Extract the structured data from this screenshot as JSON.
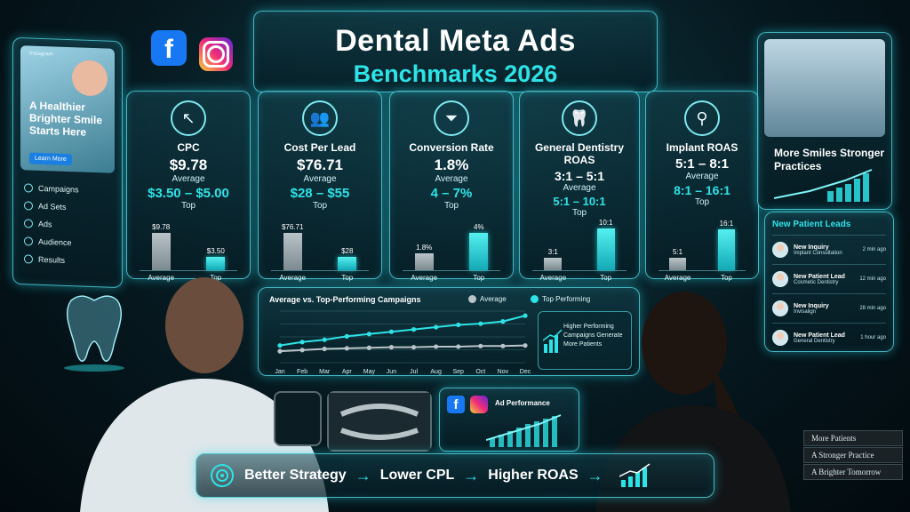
{
  "title": {
    "line1": "Dental Meta Ads",
    "line2": "Benchmarks 2026"
  },
  "brand_colors": {
    "accent": "#2de3e6",
    "facebook": "#1877f2",
    "background": "#06181f"
  },
  "icons": {
    "facebook": "facebook-logo",
    "instagram": "instagram-logo"
  },
  "metrics": [
    {
      "icon": "cursor-icon",
      "glyph": "↖",
      "label": "CPC",
      "average": "$9.78",
      "average_sub": "Average",
      "top": "$3.50 – $5.00",
      "top_sub": "Top",
      "bar_avg_label": "$9.78",
      "bar_top_label": "$3.50",
      "bar_avg_value": 9.78,
      "bar_top_value": 3.5,
      "bar_max": 12,
      "axis_avg": "Average",
      "axis_top": "Top"
    },
    {
      "icon": "people-icon",
      "glyph": "👥",
      "label": "Cost Per Lead",
      "average": "$76.71",
      "average_sub": "Average",
      "top": "$28 – $55",
      "top_sub": "Top",
      "bar_avg_label": "$76.71",
      "bar_top_label": "$28",
      "bar_avg_value": 76.71,
      "bar_top_value": 28,
      "bar_max": 95,
      "axis_avg": "Average",
      "axis_top": "Top"
    },
    {
      "icon": "funnel-icon",
      "glyph": "⏷",
      "label": "Conversion Rate",
      "average": "1.8%",
      "average_sub": "Average",
      "top": "4 – 7%",
      "top_sub": "Top",
      "bar_avg_label": "1.8%",
      "bar_top_label": "4%",
      "bar_avg_value": 1.8,
      "bar_top_value": 4,
      "bar_max": 5,
      "axis_avg": "Average",
      "axis_top": "Top"
    },
    {
      "icon": "tooth-icon",
      "glyph": "🦷",
      "label": "General Dentistry ROAS",
      "average": "3:1 – 5:1",
      "average_sub": "Average",
      "top": "5:1 – 10:1",
      "top_sub": "Top",
      "bar_avg_label": "3:1",
      "bar_top_label": "10:1",
      "bar_avg_value": 3,
      "bar_top_value": 10,
      "bar_max": 11,
      "axis_avg": "Average",
      "axis_top": "Top"
    },
    {
      "icon": "implant-icon",
      "glyph": "⚲",
      "label": "Implant ROAS",
      "average": "5:1 – 8:1",
      "average_sub": "Average",
      "top": "8:1 – 16:1",
      "top_sub": "Top",
      "bar_avg_label": "5:1",
      "bar_top_label": "16:1",
      "bar_avg_value": 5,
      "bar_top_value": 16,
      "bar_max": 18,
      "axis_avg": "Average",
      "axis_top": "Top"
    }
  ],
  "sidebar": {
    "tag": "Instagram",
    "hero_text": "A Healthier Brighter Smile Starts Here",
    "learn_more": "Learn More",
    "items": [
      {
        "label": "Campaigns"
      },
      {
        "label": "Ad Sets"
      },
      {
        "label": "Ads"
      },
      {
        "label": "Audience"
      },
      {
        "label": "Results"
      }
    ]
  },
  "right_panel": {
    "text": "More Smiles Stronger Practices"
  },
  "leads": {
    "header": "New Patient Leads",
    "items": [
      {
        "name": "New Inquiry",
        "service": "Implant Consultation",
        "time": "2 min ago"
      },
      {
        "name": "New Patient Lead",
        "service": "Cosmetic Dentistry",
        "time": "12 min ago"
      },
      {
        "name": "New Inquiry",
        "service": "Invisalign",
        "time": "28 min ago"
      },
      {
        "name": "New Patient Lead",
        "service": "General Dentistry",
        "time": "1 hour ago"
      }
    ]
  },
  "chart_data": {
    "type": "line",
    "title": "Average vs. Top-Performing Campaigns",
    "x": [
      "Jan",
      "Feb",
      "Mar",
      "Apr",
      "May",
      "Jun",
      "Jul",
      "Aug",
      "Sep",
      "Oct",
      "Nov",
      "Dec"
    ],
    "series": [
      {
        "name": "Average",
        "color": "#b9c4c8",
        "values": [
          2.0,
          2.2,
          2.4,
          2.5,
          2.6,
          2.7,
          2.7,
          2.8,
          2.8,
          2.9,
          2.9,
          3.0
        ]
      },
      {
        "name": "Top Performing",
        "color": "#2de3e6",
        "values": [
          3.0,
          3.6,
          4.0,
          4.6,
          5.0,
          5.4,
          5.8,
          6.2,
          6.6,
          6.8,
          7.2,
          8.2
        ]
      }
    ],
    "ylim": [
      0,
      9
    ],
    "grid": true,
    "legend": "top-right"
  },
  "insight": {
    "text": "Higher Performing Campaigns Generate More Patients"
  },
  "ad_performance": {
    "title": "Ad Performance"
  },
  "banner": {
    "step1": "Better Strategy",
    "step2": "Lower CPL",
    "step3": "Higher ROAS"
  },
  "books": [
    "More Patients",
    "A Stronger Practice",
    "A Brighter Tomorrow"
  ]
}
